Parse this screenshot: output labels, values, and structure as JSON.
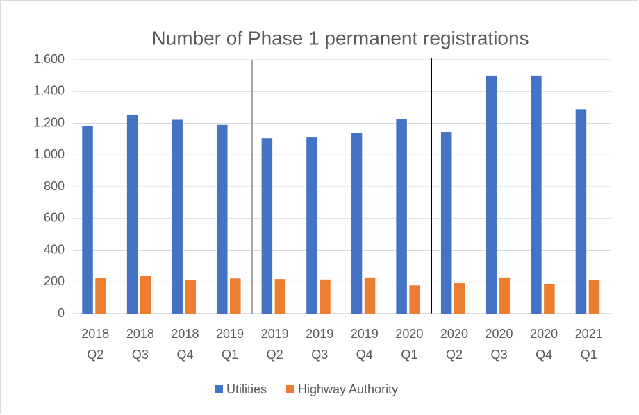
{
  "chart_data": {
    "type": "bar",
    "title": "Number of Phase 1 permanent registrations",
    "categories": [
      "2018 Q2",
      "2018 Q3",
      "2018 Q4",
      "2019 Q1",
      "2019 Q2",
      "2019 Q3",
      "2019 Q4",
      "2020 Q1",
      "2020 Q2",
      "2020 Q3",
      "2020 Q4",
      "2021 Q1"
    ],
    "series": [
      {
        "name": "Utilities",
        "color": "#4472c4",
        "values": [
          1185,
          1255,
          1222,
          1190,
          1105,
          1110,
          1140,
          1225,
          1145,
          1500,
          1500,
          1288
        ]
      },
      {
        "name": "Highway Authority",
        "color": "#ed7d31",
        "values": [
          225,
          240,
          210,
          222,
          218,
          215,
          228,
          178,
          192,
          228,
          188,
          212
        ]
      }
    ],
    "ylim": [
      0,
      1600
    ],
    "yticks": [
      0,
      200,
      400,
      600,
      800,
      {
        "value": 1000,
        "label": "1,000"
      },
      {
        "value": 1200,
        "label": "1,200"
      },
      {
        "value": 1400,
        "label": "1,400"
      },
      {
        "value": 1600,
        "label": "1,600"
      }
    ],
    "grid": true,
    "legend": "bottom"
  }
}
